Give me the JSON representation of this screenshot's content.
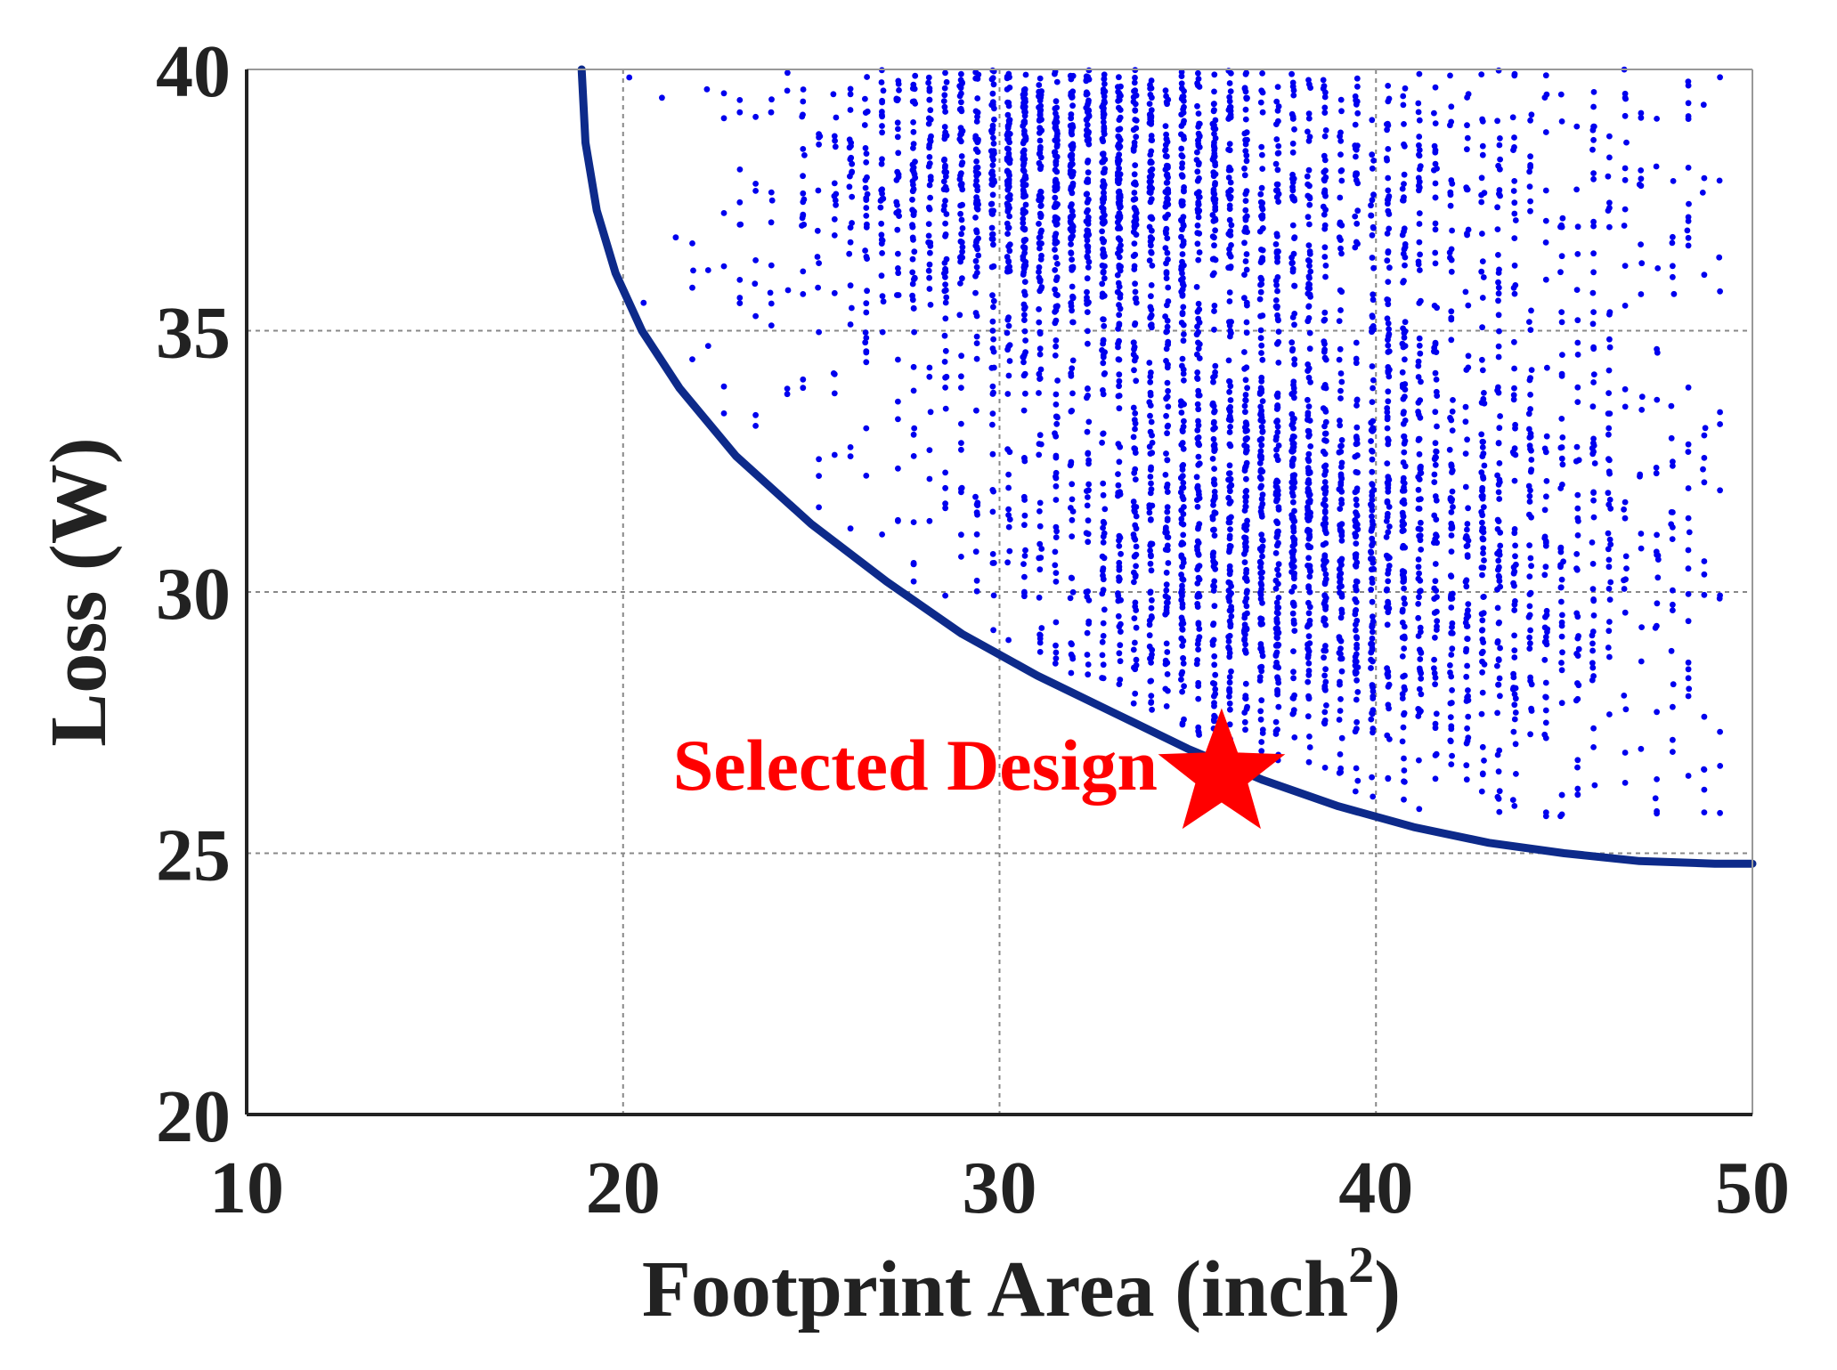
{
  "chart_data": {
    "type": "scatter",
    "xlabel": "Footprint Area (inch",
    "xlabel_superscript": "2",
    "xlabel_suffix": ")",
    "ylabel": "Loss (W)",
    "xlim": [
      10,
      50
    ],
    "ylim": [
      20,
      40
    ],
    "x_ticks": [
      10,
      20,
      30,
      40,
      50
    ],
    "y_ticks": [
      20,
      25,
      30,
      35,
      40
    ],
    "x_tick_labels": [
      "10",
      "20",
      "30",
      "40",
      "50"
    ],
    "y_tick_labels": [
      "20",
      "25",
      "30",
      "35",
      "40"
    ],
    "grid": true,
    "colors": {
      "points": "#0000ee",
      "frontier": "#0d2a8a",
      "selected": "#ff0000",
      "grid": "#888888",
      "axis": "#222222"
    },
    "series": [
      {
        "type": "scatter",
        "values_note_sampled": false,
        "x_range": [
          19.3,
          49.2
        ],
        "y_range": [
          25.7,
          40
        ],
        "density_clusters": [
          {
            "x": 31.5,
            "y": 38.0,
            "count": 1400
          },
          {
            "x": 36.5,
            "y": 31.0,
            "count": 1400
          },
          {
            "x": 42.0,
            "y": 30.5,
            "count": 700
          },
          {
            "x": 38.0,
            "y": 37.5,
            "count": 600
          }
        ]
      },
      {
        "type": "line",
        "x": [
          18.9,
          19.0,
          19.3,
          19.8,
          20.5,
          21.5,
          23.0,
          25.0,
          27.0,
          29.0,
          31.0,
          33.0,
          35.0,
          37.0,
          39.0,
          41.0,
          43.0,
          45.0,
          47.0,
          49.0,
          50.0
        ],
        "y": [
          40.0,
          38.6,
          37.3,
          36.1,
          35.0,
          33.9,
          32.6,
          31.3,
          30.2,
          29.2,
          28.4,
          27.7,
          27.0,
          26.4,
          25.9,
          25.5,
          25.2,
          25.0,
          24.85,
          24.8,
          24.8
        ]
      }
    ],
    "selected_point": {
      "x": 35.9,
      "y": 26.5,
      "label": "Selected Design"
    }
  }
}
